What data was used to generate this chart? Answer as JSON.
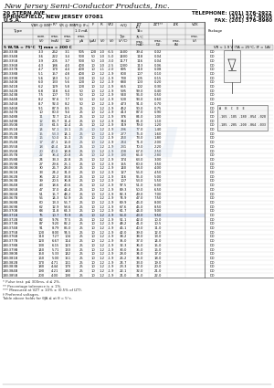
{
  "company_name": "New Jersey Semi-Conductor Products, Inc.",
  "address_line1": "20 STERN AVE.",
  "address_line2": "SPRINGFIELD, NEW JERSEY 07081",
  "address_line3": "U.S.A.",
  "phone1": "TELEPHONE: (201) 376-2922",
  "phone2": "(312) 227-6005",
  "fax": "FAX: (201) 376-8960",
  "section_header": "5 W,TA = 75°C  TJ max = 200 C",
  "section_header2": "VR < 1.9 V (TA = 25°C, IF = 1A)",
  "rows": [
    [
      "1N5333B",
      "3.3",
      "262",
      "3.1",
      "905",
      "100",
      "1.0",
      "-6.5",
      "1500",
      "39.4",
      "0.02"
    ],
    [
      "1N5334B",
      "3.6",
      "222",
      "3.4",
      "900",
      "50",
      "1.0",
      "-5.0",
      "1400",
      "118",
      "0.04"
    ],
    [
      "1N5335B",
      "3.9",
      "205",
      "3.7",
      "900",
      "50",
      "1.0",
      "-3.0",
      "1177",
      "116",
      "0.04"
    ],
    [
      "1N5336B",
      "4.3",
      "186",
      "4.0",
      "400",
      "10",
      "1.0",
      "-2.5",
      "1000",
      "113",
      "0.06"
    ],
    [
      "1N5337B",
      "4.7",
      "170",
      "4.4",
      "400",
      "10",
      "1.1",
      "-2.0",
      "895",
      "110",
      "0.08"
    ],
    [
      "1N5338B",
      "5.1",
      "157",
      "4.8",
      "400",
      "10",
      "1.2",
      "-1.9",
      "800",
      "107",
      "0.10"
    ],
    [
      "1N5339B",
      "5.6",
      "143",
      "5.2",
      "100",
      "10",
      "1.2",
      "-1.9",
      "730",
      "105",
      "0.15"
    ],
    [
      "1N5340B",
      "6.0",
      "133",
      "5.6",
      "100",
      "10",
      "1.2",
      "-1.9",
      "680",
      "103",
      "0.20"
    ],
    [
      "1N5341B",
      "6.2",
      "129",
      "5.8",
      "100",
      "10",
      "1.2",
      "-1.9",
      "655",
      "102",
      "0.30"
    ],
    [
      "1N5342B",
      "6.8",
      "118",
      "6.4",
      "50",
      "10",
      "1.2",
      "-1.9",
      "595",
      "99.0",
      "0.40"
    ],
    [
      "1N5343B",
      "7.5",
      "107",
      "7.0",
      "50",
      "10",
      "1.2",
      "-1.9",
      "540",
      "96.0",
      "0.50"
    ],
    [
      "1N5344B",
      "8.2",
      "97.6",
      "7.7",
      "50",
      "10",
      "1.2",
      "-1.9",
      "500",
      "93.0",
      "0.60"
    ],
    [
      "1N5345B",
      "8.7",
      "92.0",
      "8.2",
      "50",
      "10",
      "1.2",
      "-1.9",
      "473",
      "91.0",
      "0.70"
    ],
    [
      "1N5346B",
      "9.1",
      "87.9",
      "8.5",
      "25",
      "10",
      "1.2",
      "-1.9",
      "452",
      "90.0",
      "0.75"
    ],
    [
      "1N5347B",
      "10",
      "80.0",
      "9.4",
      "25",
      "10",
      "1.2",
      "-1.9",
      "413",
      "87.0",
      "0.90"
    ],
    [
      "1N5348B",
      "11",
      "72.7",
      "10.4",
      "25",
      "10",
      "1.2",
      "-1.9",
      "376",
      "84.0",
      "1.00"
    ],
    [
      "1N5349B",
      "12",
      "66.7",
      "11.4",
      "25",
      "10",
      "1.2",
      "-1.9",
      "344",
      "81.0",
      "1.10"
    ],
    [
      "1N5350B",
      "13",
      "61.5",
      "12.4",
      "25",
      "10",
      "1.2",
      "-1.9",
      "319",
      "79.0",
      "1.20"
    ],
    [
      "1N5351B",
      "14",
      "57.1",
      "13.1",
      "25",
      "10",
      "1.2",
      "-1.9",
      "296",
      "77.0",
      "1.40"
    ],
    [
      "1N5352B",
      "15",
      "53.3",
      "14.1",
      "25",
      "10",
      "1.2",
      "-1.9",
      "277",
      "75.0",
      "1.60"
    ],
    [
      "1N5353B",
      "16",
      "50.0",
      "15.1",
      "25",
      "10",
      "1.2",
      "-1.9",
      "260",
      "73.0",
      "1.80"
    ],
    [
      "1N5354B",
      "17",
      "47.1",
      "16.0",
      "25",
      "10",
      "1.2",
      "-1.9",
      "244",
      "71.0",
      "2.00"
    ],
    [
      "1N5355B",
      "18",
      "44.4",
      "16.8",
      "25",
      "10",
      "1.2",
      "-1.9",
      "231",
      "70.0",
      "2.20"
    ],
    [
      "1N5356B",
      "20",
      "40.0",
      "18.8",
      "25",
      "10",
      "1.2",
      "-1.9",
      "208",
      "67.0",
      "2.50"
    ],
    [
      "1N5357B",
      "22",
      "36.4",
      "20.8",
      "25",
      "10",
      "1.2",
      "-1.9",
      "190",
      "65.0",
      "2.80"
    ],
    [
      "1N5358B",
      "24",
      "33.3",
      "22.8",
      "25",
      "10",
      "1.2",
      "-1.9",
      "174",
      "63.0",
      "3.00"
    ],
    [
      "1N5359B",
      "27",
      "29.6",
      "25.1",
      "25",
      "10",
      "1.2",
      "-1.9",
      "155",
      "60.0",
      "3.50"
    ],
    [
      "1N5360B",
      "30",
      "26.7",
      "28.0",
      "25",
      "10",
      "1.2",
      "-1.9",
      "140",
      "58.0",
      "4.00"
    ],
    [
      "1N5361B",
      "33",
      "24.2",
      "31.0",
      "25",
      "10",
      "1.2",
      "-1.9",
      "127",
      "56.0",
      "4.50"
    ],
    [
      "1N5362B",
      "36",
      "22.2",
      "33.8",
      "25",
      "10",
      "1.2",
      "-1.9",
      "116",
      "55.0",
      "5.00"
    ],
    [
      "1N5363B",
      "39",
      "20.5",
      "36.8",
      "25",
      "10",
      "1.2",
      "-1.9",
      "107",
      "53.0",
      "5.50"
    ],
    [
      "1N5364B",
      "43",
      "18.6",
      "40.6",
      "25",
      "10",
      "1.2",
      "-1.9",
      "97.5",
      "51.0",
      "6.00"
    ],
    [
      "1N5365B",
      "47",
      "17.0",
      "44.4",
      "25",
      "10",
      "1.2",
      "-1.9",
      "89.3",
      "50.0",
      "6.50"
    ],
    [
      "1N5366B",
      "51",
      "15.7",
      "48.2",
      "25",
      "10",
      "1.2",
      "-1.9",
      "82.3",
      "49.0",
      "7.00"
    ],
    [
      "1N5367B",
      "56",
      "14.3",
      "52.9",
      "25",
      "10",
      "1.2",
      "-1.9",
      "74.9",
      "47.0",
      "7.50"
    ],
    [
      "1N5368B",
      "60",
      "13.3",
      "56.7",
      "25",
      "10",
      "1.2",
      "-1.9",
      "69.9",
      "46.0",
      "8.00"
    ],
    [
      "1N5369B",
      "62",
      "12.9",
      "58.6",
      "25",
      "10",
      "1.2",
      "-1.9",
      "67.6",
      "46.0",
      "8.50"
    ],
    [
      "1N5370B",
      "68",
      "11.8",
      "64.3",
      "25",
      "10",
      "1.2",
      "-1.9",
      "61.7",
      "44.0",
      "9.00"
    ],
    [
      "1N5371B",
      "75",
      "10.7",
      "70.9",
      "25",
      "10",
      "1.2",
      "-1.9",
      "56.0",
      "43.0",
      "9.50"
    ],
    [
      "1N5372B",
      "82",
      "9.76",
      "77.5",
      "25",
      "10",
      "1.2",
      "-1.9",
      "51.1",
      "42.0",
      "10.0"
    ],
    [
      "1N5373B",
      "87",
      "9.20",
      "82.2",
      "25",
      "10",
      "1.2",
      "-1.9",
      "48.2",
      "41.0",
      "10.5"
    ],
    [
      "1N5374B",
      "91",
      "8.79",
      "86.0",
      "25",
      "10",
      "1.2",
      "-1.9",
      "46.1",
      "40.0",
      "11.0"
    ],
    [
      "1N5375B",
      "100",
      "8.00",
      "94.5",
      "25",
      "10",
      "1.2",
      "-1.9",
      "42.0",
      "39.0",
      "12.0"
    ],
    [
      "1N5376B",
      "110",
      "7.27",
      "104",
      "25",
      "10",
      "1.2",
      "-1.9",
      "38.2",
      "38.0",
      "13.0"
    ],
    [
      "1N5377B",
      "120",
      "6.67",
      "114",
      "25",
      "10",
      "1.2",
      "-1.9",
      "35.0",
      "37.0",
      "14.0"
    ],
    [
      "1N5378B",
      "130",
      "6.15",
      "123",
      "25",
      "10",
      "1.2",
      "-1.9",
      "32.3",
      "36.0",
      "15.0"
    ],
    [
      "1N5379B",
      "140",
      "5.71",
      "133",
      "25",
      "10",
      "1.2",
      "-1.9",
      "30.0",
      "35.0",
      "16.0"
    ],
    [
      "1N5380B",
      "150",
      "5.33",
      "142",
      "25",
      "10",
      "1.2",
      "-1.9",
      "28.0",
      "34.0",
      "17.0"
    ],
    [
      "1N5381B",
      "160",
      "5.00",
      "151",
      "25",
      "10",
      "1.2",
      "-1.9",
      "26.2",
      "34.0",
      "18.0"
    ],
    [
      "1N5382B",
      "170",
      "4.71",
      "161",
      "25",
      "10",
      "1.2",
      "-1.9",
      "24.7",
      "33.0",
      "19.0"
    ],
    [
      "1N5383B",
      "180",
      "4.44",
      "170",
      "25",
      "10",
      "1.2",
      "-1.9",
      "23.3",
      "32.0",
      "20.0"
    ],
    [
      "1N5384B",
      "190",
      "4.21",
      "180",
      "25",
      "10",
      "1.2",
      "-1.9",
      "22.1",
      "32.0",
      "21.0"
    ],
    [
      "1N5385B",
      "200",
      "4.00",
      "190",
      "25",
      "10",
      "1.2",
      "-1.9",
      "21.0",
      "31.0",
      "22.0"
    ]
  ],
  "footnote1": "* Pulse test: p≤ 300ms, d ≤ 2%.",
  "footnote2": "** Percentage tolerance is ± 1%.",
  "footnote3": "*** Measured at VZT ± 10% ± (0.5% of IZT).",
  "footnote4": "† Preferred voltages.",
  "footnote5": "Table above holds for θJA ≤ at θ = 5°c.",
  "bg_color": "#ffffff",
  "text_color": "#111111",
  "line_color": "#666666"
}
